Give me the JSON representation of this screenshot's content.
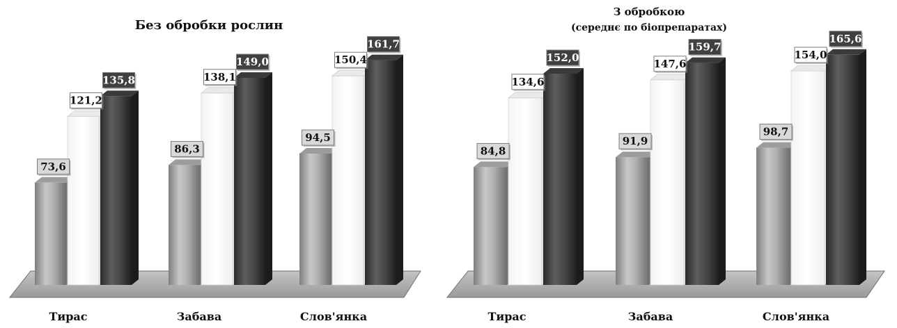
{
  "chart_data": [
    {
      "type": "bar",
      "title": "Без обробки рослин",
      "subtitle": "",
      "categories": [
        "Тирас",
        "Забава",
        "Слов'янка"
      ],
      "series": [
        {
          "values": [
            73.6,
            86.3,
            94.5
          ],
          "color": "#a6a6a6"
        },
        {
          "values": [
            121.2,
            138.1,
            150.4
          ],
          "color": "#ffffff"
        },
        {
          "values": [
            135.8,
            149.0,
            161.7
          ],
          "color": "#4d4d4d"
        }
      ],
      "value_labels": [
        [
          "73,6",
          "86,3",
          "94,5"
        ],
        [
          "121,2",
          "138,1",
          "150,4"
        ],
        [
          "135,8",
          "149,0",
          "161,7"
        ]
      ],
      "ylim": [
        0,
        175
      ],
      "grid": false,
      "legend": "none",
      "style": "3d-cylinder"
    },
    {
      "type": "bar",
      "title": "З обробкою",
      "subtitle": "(середнє по біопрепаратах)",
      "categories": [
        "Тирас",
        "Забава",
        "Слов'янка"
      ],
      "series": [
        {
          "values": [
            84.8,
            91.9,
            98.7
          ],
          "color": "#a6a6a6"
        },
        {
          "values": [
            134.6,
            147.6,
            154.0
          ],
          "color": "#ffffff"
        },
        {
          "values": [
            152.0,
            159.7,
            165.6
          ],
          "color": "#4d4d4d"
        }
      ],
      "value_labels": [
        [
          "84,8",
          "91,9",
          "98,7"
        ],
        [
          "134,6",
          "147,6",
          "154,0"
        ],
        [
          "152,0",
          "159,7",
          "165,6"
        ]
      ],
      "ylim": [
        0,
        175
      ],
      "grid": false,
      "legend": "none",
      "style": "3d-cylinder"
    }
  ],
  "colors": {
    "floor": "#b5b5b5",
    "floor_stroke": "#6f6f6f",
    "label_light_bg": "#d9d9d9",
    "label_white_bg": "#ffffff",
    "label_dark_bg": "#404040",
    "label_dark_text": "#ffffff",
    "label_text": "#111111"
  }
}
